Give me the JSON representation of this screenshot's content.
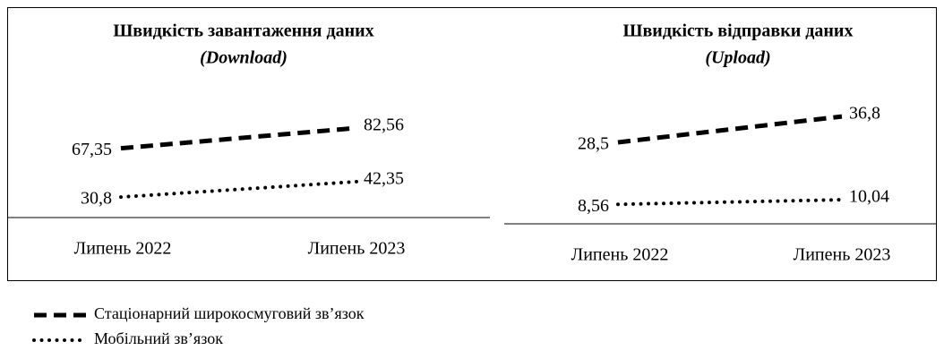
{
  "chart_data": [
    {
      "type": "line",
      "title": "Швидкість завантаження даних",
      "subtitle": "(Download)",
      "categories": [
        "Липень 2022",
        "Липень 2023"
      ],
      "ylim": [
        0,
        100
      ],
      "series": [
        {
          "name": "Стаціонарний широкосмуговий зв’язок",
          "color": "#000000",
          "dash": "dashed",
          "values": [
            67.35,
            82.56
          ],
          "value_labels": [
            "67,35",
            "82,56"
          ]
        },
        {
          "name": "Мобільний зв’язок",
          "color": "#000000",
          "dash": "dotted",
          "values": [
            30.8,
            42.35
          ],
          "value_labels": [
            "30,8",
            "42,35"
          ]
        }
      ]
    },
    {
      "type": "line",
      "title": "Швидкість відправки даних",
      "subtitle": "(Upload)",
      "categories": [
        "Липень 2022",
        "Липень 2023"
      ],
      "ylim": [
        0,
        40
      ],
      "series": [
        {
          "color": "#000000",
          "dash": "dashed",
          "values": [
            28.5,
            36.8
          ],
          "value_labels": [
            "28,5",
            "36,8"
          ]
        },
        {
          "color": "#000000",
          "dash": "dotted",
          "values": [
            8.56,
            10.04
          ],
          "value_labels": [
            "8,56",
            "10,04"
          ]
        }
      ]
    }
  ]
}
